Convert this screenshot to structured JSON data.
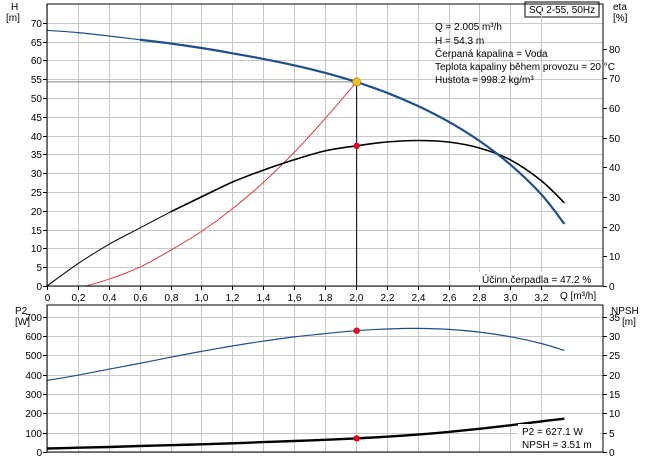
{
  "header": {
    "model_label": "SQ 2-55, 50Hz"
  },
  "top_panel": {
    "left_unit_label": "H",
    "left_unit": "[m]",
    "right_unit_label": "eta",
    "right_unit": "[%]",
    "x_axis_label": "Q [m³/h]",
    "info_lines": [
      "Q = 2.005 m³/h",
      "H = 54.3 m",
      "Čerpaná kapalina = Voda",
      "Teplota kapaliny během provozu = 20 °C",
      "Hustota = 998.2 kg/m³"
    ],
    "efficiency_label": "Účinn.čerpadla = 47.2 %"
  },
  "bottom_panel": {
    "left_unit_label": "P2",
    "left_unit": "[W]",
    "right_unit_label": "NPSH",
    "right_unit": "[m]",
    "info_lines": [
      "P2 = 627.1 W",
      "NPSH = 3.51 m"
    ]
  },
  "colors": {
    "head_curve": "#1f4e8c",
    "efficiency_curve": "#000000",
    "system_curve": "#e03c3c",
    "power_curve": "#1f4e8c",
    "npsh_curve": "#000000",
    "duty_point": "#f2c12e",
    "marker": "#e8001c",
    "grid": "#c8c8c8"
  },
  "chart_data": [
    {
      "type": "line",
      "panel": "top",
      "xlim": [
        0,
        3.6
      ],
      "ylim": [
        0,
        75
      ],
      "y2lim": [
        0,
        95
      ],
      "x_ticks": [
        "0",
        "0,2",
        "0,4",
        "0,6",
        "0,8",
        "1,0",
        "1,2",
        "1,4",
        "1,6",
        "1,8",
        "2,0",
        "2,2",
        "2,4",
        "2,6",
        "2,8",
        "3,0",
        "3,2"
      ],
      "y_ticks": [
        "0",
        "5",
        "10",
        "15",
        "20",
        "25",
        "30",
        "35",
        "40",
        "45",
        "50",
        "55",
        "60",
        "65",
        "70"
      ],
      "y2_ticks": [
        "0",
        "10",
        "20",
        "30",
        "40",
        "50",
        "60",
        "70",
        "80"
      ],
      "grid": true,
      "series": [
        {
          "key": "head",
          "axis": "left",
          "x": [
            0,
            0.2,
            0.4,
            0.6,
            0.8,
            1.0,
            1.2,
            1.4,
            1.6,
            1.8,
            2.0,
            2.2,
            2.4,
            2.6,
            2.8,
            3.0,
            3.2,
            3.35
          ],
          "y": [
            68,
            67.4,
            66.5,
            65.5,
            64.5,
            63.3,
            61.9,
            60.4,
            58.7,
            56.7,
            54.3,
            51.4,
            47.9,
            43.7,
            38.6,
            32.3,
            24.4,
            16.5
          ]
        },
        {
          "key": "efficiency",
          "axis": "right",
          "x": [
            0,
            0.2,
            0.4,
            0.6,
            0.8,
            1.0,
            1.2,
            1.4,
            1.6,
            1.8,
            2.0,
            2.2,
            2.4,
            2.6,
            2.8,
            3.0,
            3.2,
            3.35
          ],
          "y": [
            0,
            7.5,
            14,
            19.5,
            25,
            30,
            35,
            39,
            42.5,
            45.5,
            47.2,
            48.5,
            49,
            48.5,
            46.5,
            42.5,
            35.5,
            28
          ]
        },
        {
          "key": "system",
          "axis": "left",
          "x": [
            0.25,
            0.4,
            0.6,
            0.8,
            1.0,
            1.2,
            1.4,
            1.6,
            1.8,
            2.005
          ],
          "y": [
            0,
            1.8,
            5,
            9.5,
            14.5,
            20.5,
            27.5,
            35.5,
            44.5,
            54.3
          ]
        }
      ],
      "duty_point": {
        "x": 2.005,
        "head": 54.3,
        "efficiency": 47.2
      }
    },
    {
      "type": "line",
      "panel": "bottom",
      "xlim": [
        0,
        3.6
      ],
      "ylim": [
        0,
        760
      ],
      "y2lim": [
        0,
        38
      ],
      "y_ticks": [
        "0",
        "100",
        "200",
        "300",
        "400",
        "500",
        "600",
        "700"
      ],
      "y2_ticks": [
        "0",
        "5",
        "10",
        "15",
        "20",
        "25",
        "30",
        "35"
      ],
      "grid": true,
      "series": [
        {
          "key": "power",
          "axis": "left",
          "x": [
            0,
            0.2,
            0.4,
            0.6,
            0.8,
            1.0,
            1.2,
            1.4,
            1.6,
            1.8,
            2.0,
            2.2,
            2.4,
            2.6,
            2.8,
            3.0,
            3.2,
            3.35
          ],
          "y": [
            370,
            397,
            428,
            458,
            490,
            520,
            548,
            573,
            595,
            612,
            627,
            636,
            639,
            634,
            620,
            596,
            561,
            525
          ]
        },
        {
          "key": "npsh",
          "axis": "right",
          "x": [
            0,
            0.2,
            0.4,
            0.6,
            0.8,
            1.0,
            1.2,
            1.4,
            1.6,
            1.8,
            2.0,
            2.2,
            2.4,
            2.6,
            2.8,
            3.0,
            3.2,
            3.35
          ],
          "y": [
            0.9,
            1.1,
            1.3,
            1.55,
            1.75,
            2.0,
            2.25,
            2.55,
            2.85,
            3.15,
            3.51,
            3.95,
            4.5,
            5.2,
            6.0,
            6.9,
            7.9,
            8.6
          ]
        }
      ],
      "duty_point": {
        "x": 2.005,
        "power": 627.1,
        "npsh": 3.51
      }
    }
  ]
}
